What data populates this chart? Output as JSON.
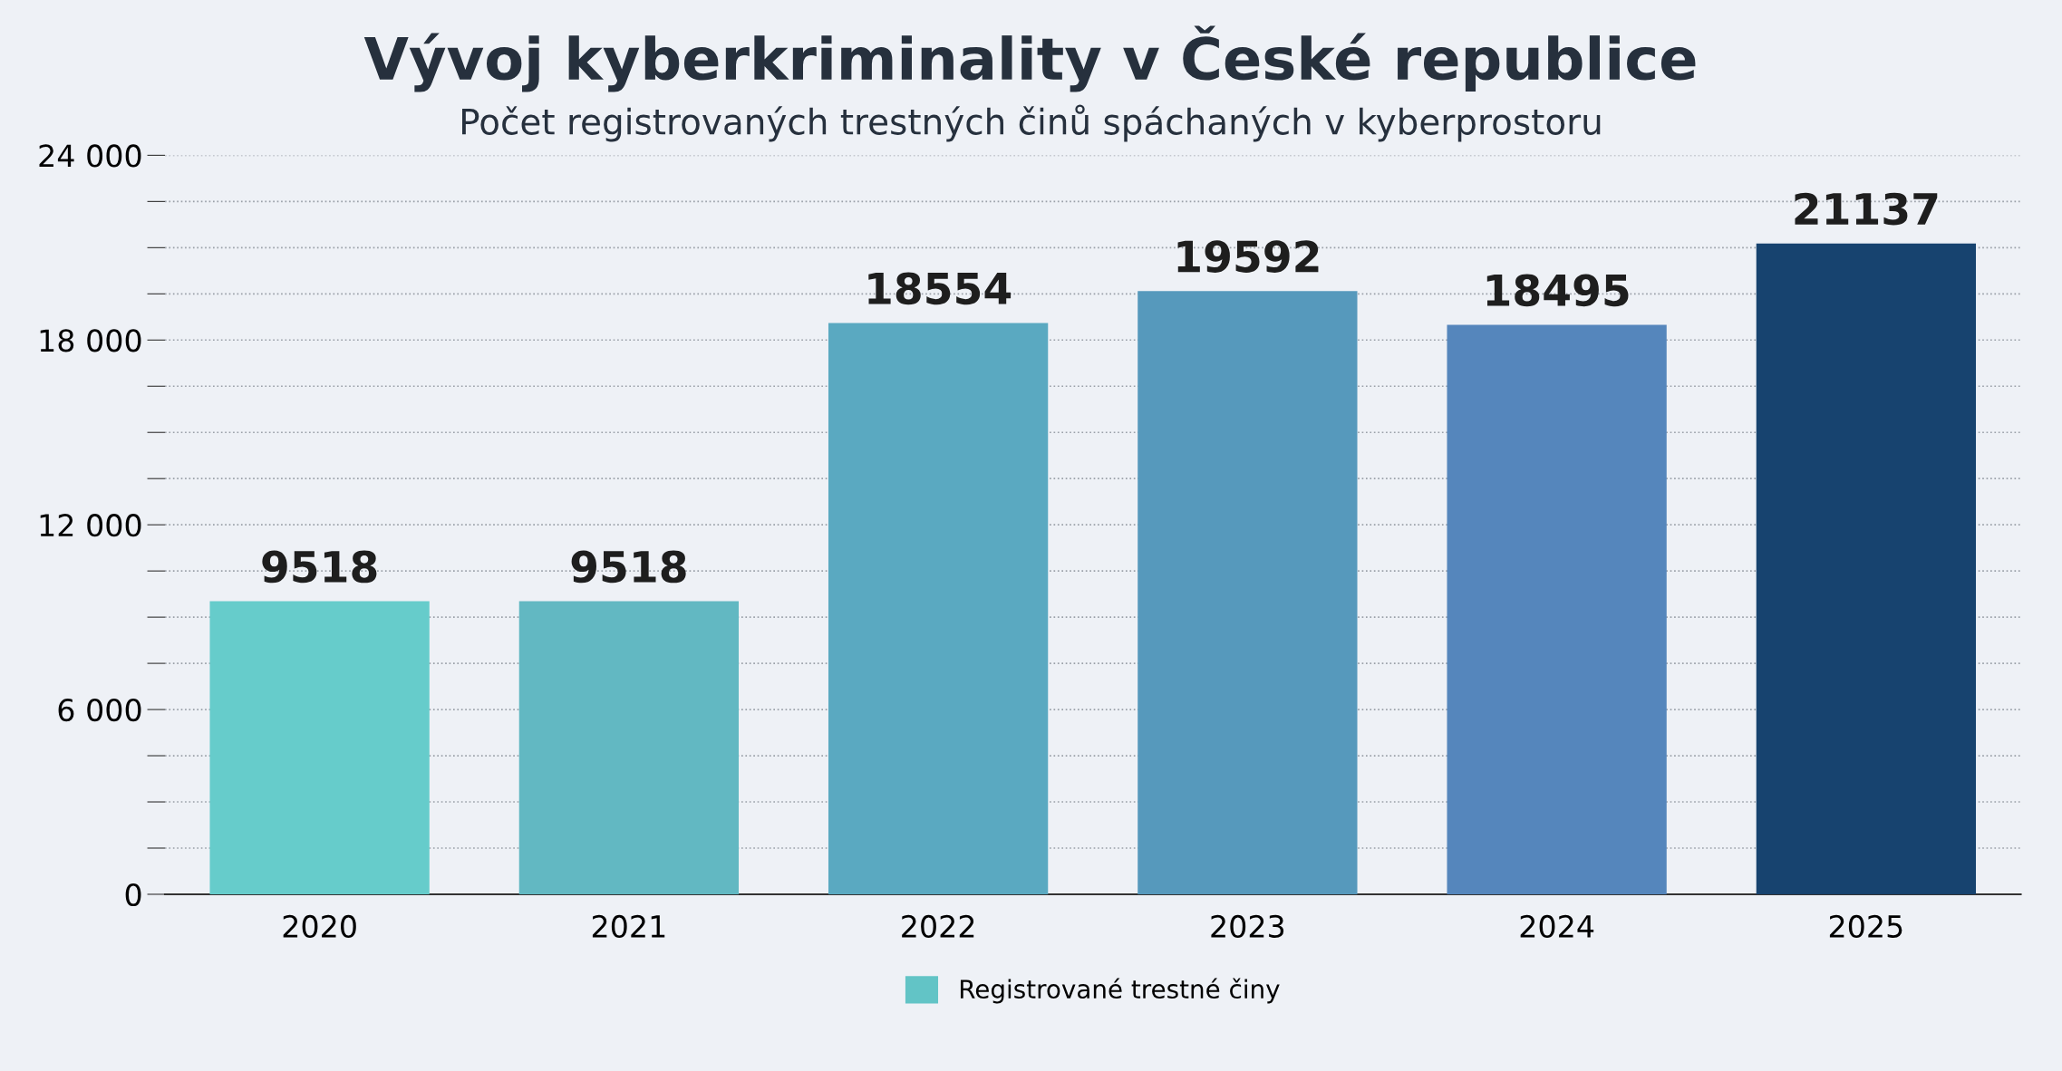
{
  "chart_data": {
    "type": "bar",
    "title": "Vývoj kyberkriminality v České republice",
    "subtitle": "Počet registrovaných trestných činů spáchaných v kyberprostoru",
    "categories": [
      "2020",
      "2021",
      "2022",
      "2023",
      "2024",
      "2025"
    ],
    "series": [
      {
        "name": "Registrované trestné činy",
        "color": "#62c4c6",
        "colors": [
          "#66cccb",
          "#62b8c2",
          "#5aa9c1",
          "#5699bc",
          "#5586bc",
          "#17436f"
        ],
        "values": [
          9518,
          9518,
          18554,
          19592,
          18495,
          21137
        ]
      }
    ],
    "ylim": [
      0,
      24000
    ],
    "yticks": [
      {
        "value": 0,
        "label": "0"
      },
      {
        "value": 1500,
        "label": null
      },
      {
        "value": 3000,
        "label": null
      },
      {
        "value": 4500,
        "label": null
      },
      {
        "value": 6000,
        "label": "6 000"
      },
      {
        "value": 7500,
        "label": null
      },
      {
        "value": 9000,
        "label": null
      },
      {
        "value": 10500,
        "label": null
      },
      {
        "value": 12000,
        "label": "12 000"
      },
      {
        "value": 13500,
        "label": null
      },
      {
        "value": 15000,
        "label": null
      },
      {
        "value": 16500,
        "label": null
      },
      {
        "value": 18000,
        "label": "18 000"
      },
      {
        "value": 19500,
        "label": null
      },
      {
        "value": 21000,
        "label": null
      },
      {
        "value": 22500,
        "label": null
      },
      {
        "value": 24000,
        "label": "24 000"
      }
    ],
    "grid": "y",
    "legend": "bottom",
    "data_labels": true
  }
}
